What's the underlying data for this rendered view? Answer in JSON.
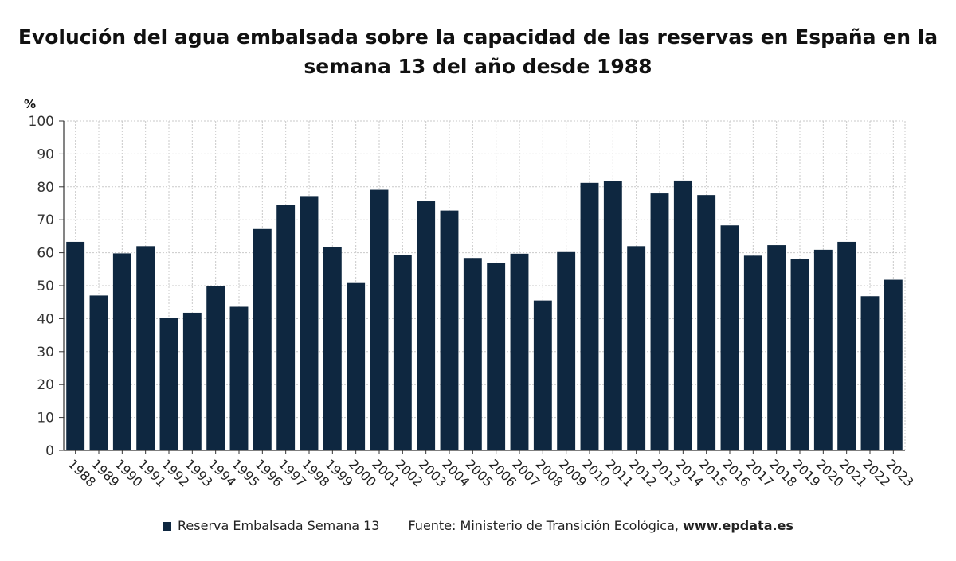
{
  "title": "Evolución del agua embalsada sobre la capacidad de las reservas en España en la semana 13 del año desde 1988",
  "colors": {
    "bar": "#0e2740",
    "grid": "#c9c9c9",
    "axis": "#333333"
  },
  "legend": {
    "series_label": "Reserva Embalsada Semana 13",
    "source_label": "Fuente: Ministerio de Transición Ecológica,",
    "source_url": "www.epdata.es"
  },
  "chart_data": {
    "type": "bar",
    "title": "Evolución del agua embalsada sobre la capacidad de las reservas en España en la semana 13 del año desde 1988",
    "ylabel": "%",
    "xlabel": "",
    "ylim": [
      0,
      100
    ],
    "yticks": [
      0,
      10,
      20,
      30,
      40,
      50,
      60,
      70,
      80,
      90,
      100
    ],
    "grid": true,
    "legend_position": "bottom",
    "categories": [
      "1988",
      "1989",
      "1990",
      "1991",
      "1992",
      "1993",
      "1994",
      "1995",
      "1996",
      "1997",
      "1998",
      "1999",
      "2000",
      "2001",
      "2002",
      "2003",
      "2004",
      "2005",
      "2006",
      "2007",
      "2008",
      "2009",
      "2010",
      "2011",
      "2012",
      "2013",
      "2014",
      "2015",
      "2016",
      "2017",
      "2018",
      "2019",
      "2020",
      "2021",
      "2022",
      "2023"
    ],
    "series": [
      {
        "name": "Reserva Embalsada Semana 13",
        "values": [
          63.3,
          47.0,
          59.8,
          62.0,
          40.3,
          41.8,
          50.0,
          43.6,
          67.2,
          74.6,
          77.2,
          61.8,
          50.8,
          79.1,
          59.3,
          75.6,
          72.8,
          58.4,
          56.8,
          59.7,
          45.5,
          60.2,
          81.2,
          81.8,
          62.0,
          78.0,
          81.9,
          77.5,
          68.3,
          59.1,
          62.3,
          58.2,
          60.9,
          63.3,
          46.8,
          51.8
        ]
      }
    ]
  }
}
